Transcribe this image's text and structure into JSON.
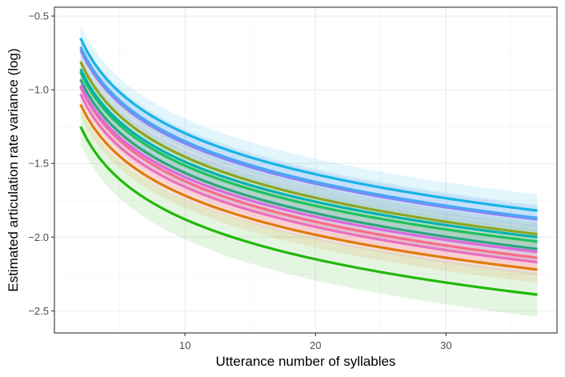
{
  "chart_data": {
    "type": "line",
    "title": "",
    "xlabel": "Utterance number of syllables",
    "ylabel": "Estimated articulation rate variance (log)",
    "xlim": [
      0,
      38.5
    ],
    "ylim": [
      -2.65,
      -0.44
    ],
    "x_range": [
      2,
      37
    ],
    "x_ticks": [
      10,
      20,
      30
    ],
    "x_tick_labels": [
      "10",
      "20",
      "30"
    ],
    "y_ticks": [
      -2.5,
      -2.0,
      -1.5,
      -1.0,
      -0.5
    ],
    "y_tick_labels": [
      "-2.5",
      "-2.0",
      "-1.5",
      "-1.0",
      "-0.5"
    ],
    "grid": true,
    "legend": "none",
    "series": [
      {
        "color": "#22b80a",
        "y_start": -1.25,
        "y_end": -2.39,
        "ci_start": 0.12,
        "ci_end": 0.15
      },
      {
        "color": "#e07b0b",
        "y_start": -1.1,
        "y_end": -2.22,
        "ci_start": 0.08,
        "ci_end": 0.09
      },
      {
        "color": "#e86fbf",
        "y_start": -1.03,
        "y_end": -2.17,
        "ci_start": 0.08,
        "ci_end": 0.09
      },
      {
        "color": "#fc6c8a",
        "y_start": -0.98,
        "y_end": -2.14,
        "ci_start": 0.07,
        "ci_end": 0.08
      },
      {
        "color": "#da69de",
        "y_start": -0.97,
        "y_end": -2.1,
        "ci_start": 0.07,
        "ci_end": 0.08
      },
      {
        "color": "#2ea57f",
        "y_start": -0.93,
        "y_end": -2.08,
        "ci_start": 0.07,
        "ci_end": 0.08
      },
      {
        "color": "#20c060",
        "y_start": -0.88,
        "y_end": -2.03,
        "ci_start": 0.07,
        "ci_end": 0.08
      },
      {
        "color": "#00b0b0",
        "y_start": -0.86,
        "y_end": -2.0,
        "ci_start": 0.07,
        "ci_end": 0.08
      },
      {
        "color": "#8da424",
        "y_start": -0.81,
        "y_end": -1.98,
        "ci_start": 0.07,
        "ci_end": 0.08
      },
      {
        "color": "#9180f5",
        "y_start": -0.73,
        "y_end": -1.88,
        "ci_start": 0.08,
        "ci_end": 0.09
      },
      {
        "color": "#4aa6f2",
        "y_start": -0.71,
        "y_end": -1.87,
        "ci_start": 0.08,
        "ci_end": 0.09
      },
      {
        "color": "#16b4e6",
        "y_start": -0.65,
        "y_end": -1.82,
        "ci_start": 0.09,
        "ci_end": 0.11
      }
    ]
  }
}
